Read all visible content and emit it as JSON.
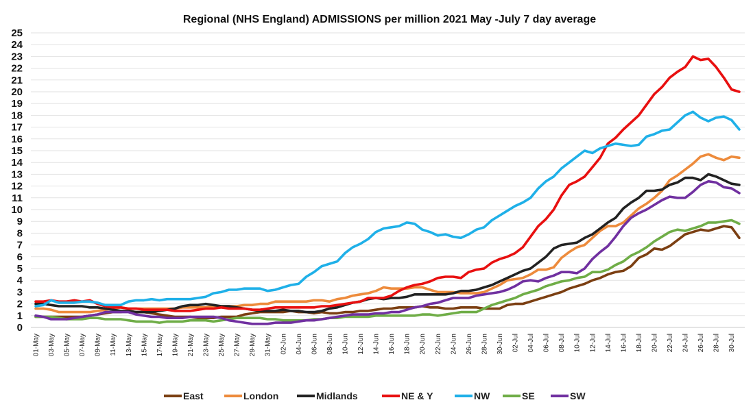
{
  "chart_data": {
    "type": "line",
    "title": "Regional (NHS England) ADMISSIONS per million 2021 May -July 7 day average",
    "xlabel": "",
    "ylabel": "",
    "ylim": [
      0,
      25
    ],
    "yticks": [
      0,
      1,
      2,
      3,
      4,
      5,
      6,
      7,
      8,
      9,
      10,
      11,
      12,
      13,
      14,
      15,
      16,
      17,
      18,
      19,
      20,
      21,
      22,
      23,
      24,
      25
    ],
    "grid": "horizontal",
    "legend": "bottom",
    "x": [
      "01-May",
      "02-May",
      "03-May",
      "04-May",
      "05-May",
      "06-May",
      "07-May",
      "08-May",
      "09-May",
      "10-May",
      "11-May",
      "12-May",
      "13-May",
      "14-May",
      "15-May",
      "16-May",
      "17-May",
      "18-May",
      "19-May",
      "20-May",
      "21-May",
      "22-May",
      "23-May",
      "24-May",
      "25-May",
      "26-May",
      "27-May",
      "28-May",
      "29-May",
      "30-May",
      "31-May",
      "01-Jun",
      "02-Jun",
      "03-Jun",
      "04-Jun",
      "05-Jun",
      "06-Jun",
      "07-Jun",
      "08-Jun",
      "09-Jun",
      "10-Jun",
      "11-Jun",
      "12-Jun",
      "13-Jun",
      "14-Jun",
      "15-Jun",
      "16-Jun",
      "17-Jun",
      "18-Jun",
      "19-Jun",
      "20-Jun",
      "21-Jun",
      "22-Jun",
      "23-Jun",
      "24-Jun",
      "25-Jun",
      "26-Jun",
      "27-Jun",
      "28-Jun",
      "29-Jun",
      "30-Jun",
      "01-Jul",
      "02-Jul",
      "03-Jul",
      "04-Jul",
      "05-Jul",
      "06-Jul",
      "07-Jul",
      "08-Jul",
      "09-Jul",
      "10-Jul",
      "11-Jul",
      "12-Jul",
      "13-Jul",
      "14-Jul",
      "15-Jul",
      "16-Jul",
      "17-Jul",
      "18-Jul",
      "19-Jul",
      "20-Jul",
      "21-Jul",
      "22-Jul",
      "23-Jul",
      "24-Jul",
      "25-Jul",
      "26-Jul",
      "27-Jul",
      "28-Jul",
      "29-Jul",
      "30-Jul",
      "31-Jul"
    ],
    "series": [
      {
        "name": "East",
        "color": "#7B3F12",
        "values": [
          0.9,
          0.9,
          0.9,
          0.9,
          0.9,
          0.9,
          0.9,
          1.0,
          1.1,
          1.2,
          1.3,
          1.3,
          1.4,
          1.3,
          1.3,
          1.2,
          1.1,
          1.0,
          0.9,
          0.9,
          0.9,
          0.8,
          0.8,
          0.8,
          0.9,
          0.9,
          0.9,
          1.1,
          1.2,
          1.3,
          1.3,
          1.3,
          1.3,
          1.4,
          1.3,
          1.3,
          1.2,
          1.3,
          1.2,
          1.2,
          1.3,
          1.3,
          1.4,
          1.4,
          1.5,
          1.6,
          1.6,
          1.7,
          1.7,
          1.7,
          1.8,
          1.7,
          1.7,
          1.6,
          1.6,
          1.7,
          1.7,
          1.7,
          1.6,
          1.6,
          1.6,
          1.9,
          2.0,
          2.0,
          2.2,
          2.4,
          2.6,
          2.8,
          3.0,
          3.3,
          3.5,
          3.7,
          4.0,
          4.2,
          4.5,
          4.7,
          4.8,
          5.2,
          5.9,
          6.2,
          6.7,
          6.6,
          6.9,
          7.4,
          7.9,
          8.1,
          8.3,
          8.2,
          8.4,
          8.6,
          8.5,
          7.6
        ]
      },
      {
        "name": "London",
        "color": "#ED8B3C",
        "values": [
          1.6,
          1.6,
          1.5,
          1.3,
          1.3,
          1.3,
          1.3,
          1.3,
          1.4,
          1.5,
          1.6,
          1.7,
          1.6,
          1.6,
          1.6,
          1.6,
          1.6,
          1.6,
          1.6,
          1.7,
          1.7,
          1.7,
          1.7,
          1.8,
          1.8,
          1.8,
          1.8,
          1.9,
          1.9,
          2.0,
          2.0,
          2.2,
          2.2,
          2.2,
          2.2,
          2.2,
          2.3,
          2.3,
          2.2,
          2.4,
          2.5,
          2.7,
          2.8,
          2.9,
          3.1,
          3.4,
          3.3,
          3.3,
          3.3,
          3.4,
          3.4,
          3.2,
          3.0,
          3.0,
          3.0,
          2.9,
          2.9,
          2.9,
          3.0,
          3.3,
          3.6,
          4.0,
          4.1,
          4.2,
          4.5,
          4.9,
          4.9,
          5.1,
          5.9,
          6.4,
          6.8,
          7.0,
          7.6,
          8.2,
          8.6,
          8.6,
          8.9,
          9.5,
          10.1,
          10.5,
          11.0,
          11.6,
          12.5,
          12.9,
          13.4,
          13.9,
          14.5,
          14.7,
          14.4,
          14.2,
          14.5,
          14.4
        ]
      },
      {
        "name": "Midlands",
        "color": "#222222",
        "values": [
          2.0,
          2.0,
          1.9,
          1.8,
          1.8,
          1.8,
          1.8,
          1.7,
          1.7,
          1.6,
          1.5,
          1.4,
          1.4,
          1.3,
          1.3,
          1.3,
          1.4,
          1.5,
          1.6,
          1.8,
          1.9,
          1.9,
          2.0,
          1.9,
          1.8,
          1.8,
          1.7,
          1.6,
          1.5,
          1.4,
          1.4,
          1.4,
          1.5,
          1.4,
          1.4,
          1.3,
          1.3,
          1.4,
          1.6,
          1.7,
          1.9,
          2.1,
          2.2,
          2.4,
          2.5,
          2.4,
          2.5,
          2.5,
          2.6,
          2.8,
          2.8,
          2.8,
          2.8,
          2.8,
          2.9,
          3.1,
          3.1,
          3.2,
          3.4,
          3.6,
          3.9,
          4.2,
          4.5,
          4.8,
          5.0,
          5.5,
          6.0,
          6.7,
          7.0,
          7.1,
          7.2,
          7.6,
          7.9,
          8.4,
          8.9,
          9.3,
          10.1,
          10.6,
          11.0,
          11.6,
          11.6,
          11.7,
          12.1,
          12.3,
          12.7,
          12.7,
          12.5,
          13.0,
          12.8,
          12.5,
          12.2,
          12.1
        ]
      },
      {
        "name": "NE & Y",
        "color": "#E81010",
        "values": [
          2.2,
          2.2,
          2.3,
          2.2,
          2.2,
          2.3,
          2.2,
          2.3,
          2.0,
          1.8,
          1.7,
          1.7,
          1.6,
          1.6,
          1.5,
          1.5,
          1.5,
          1.5,
          1.4,
          1.4,
          1.4,
          1.5,
          1.6,
          1.6,
          1.7,
          1.6,
          1.6,
          1.6,
          1.5,
          1.5,
          1.6,
          1.7,
          1.7,
          1.7,
          1.7,
          1.7,
          1.7,
          1.8,
          1.8,
          1.9,
          2.0,
          2.1,
          2.2,
          2.5,
          2.5,
          2.5,
          2.7,
          3.1,
          3.4,
          3.6,
          3.7,
          3.9,
          4.2,
          4.3,
          4.3,
          4.2,
          4.7,
          4.9,
          5.0,
          5.5,
          5.8,
          6.0,
          6.3,
          6.8,
          7.7,
          8.6,
          9.2,
          10.0,
          11.2,
          12.1,
          12.4,
          12.8,
          13.6,
          14.4,
          15.6,
          16.1,
          16.8,
          17.4,
          18.0,
          18.9,
          19.8,
          20.4,
          21.2,
          21.7,
          22.1,
          23.0,
          22.7,
          22.8,
          22.1,
          21.2,
          20.2,
          20.0
        ]
      },
      {
        "name": "NW",
        "color": "#1FB0E8",
        "values": [
          1.8,
          1.9,
          2.3,
          2.1,
          2.1,
          2.1,
          2.2,
          2.2,
          2.1,
          1.9,
          1.9,
          1.9,
          2.2,
          2.3,
          2.3,
          2.4,
          2.3,
          2.4,
          2.4,
          2.4,
          2.4,
          2.5,
          2.6,
          2.9,
          3.0,
          3.2,
          3.2,
          3.3,
          3.3,
          3.3,
          3.1,
          3.2,
          3.4,
          3.6,
          3.7,
          4.3,
          4.7,
          5.2,
          5.4,
          5.6,
          6.3,
          6.8,
          7.1,
          7.5,
          8.1,
          8.4,
          8.5,
          8.6,
          8.9,
          8.8,
          8.3,
          8.1,
          7.8,
          7.9,
          7.7,
          7.6,
          7.9,
          8.3,
          8.5,
          9.1,
          9.5,
          9.9,
          10.3,
          10.6,
          11.0,
          11.8,
          12.4,
          12.8,
          13.5,
          14.0,
          14.5,
          15.0,
          14.8,
          15.2,
          15.4,
          15.6,
          15.5,
          15.4,
          15.5,
          16.2,
          16.4,
          16.7,
          16.8,
          17.4,
          18.0,
          18.3,
          17.8,
          17.5,
          17.8,
          17.9,
          17.6,
          16.8
        ]
      },
      {
        "name": "SE",
        "color": "#6FAD47",
        "values": [
          0.9,
          0.9,
          0.9,
          0.8,
          0.7,
          0.7,
          0.7,
          0.8,
          0.8,
          0.7,
          0.7,
          0.7,
          0.6,
          0.5,
          0.5,
          0.5,
          0.4,
          0.5,
          0.5,
          0.5,
          0.6,
          0.6,
          0.6,
          0.5,
          0.6,
          0.7,
          0.8,
          0.8,
          0.8,
          0.8,
          0.7,
          0.7,
          0.6,
          0.6,
          0.6,
          0.6,
          0.7,
          0.7,
          0.8,
          0.8,
          0.9,
          0.9,
          0.9,
          0.9,
          1.0,
          1.0,
          1.0,
          1.0,
          1.0,
          1.0,
          1.1,
          1.1,
          1.0,
          1.1,
          1.2,
          1.3,
          1.3,
          1.3,
          1.6,
          1.9,
          2.1,
          2.3,
          2.5,
          2.8,
          3.0,
          3.2,
          3.5,
          3.7,
          3.9,
          4.0,
          4.2,
          4.3,
          4.7,
          4.7,
          4.9,
          5.3,
          5.6,
          6.1,
          6.4,
          6.8,
          7.3,
          7.7,
          8.1,
          8.3,
          8.2,
          8.4,
          8.6,
          8.9,
          8.9,
          9.0,
          9.1,
          8.8
        ]
      },
      {
        "name": "SW",
        "color": "#7030A0",
        "values": [
          1.0,
          0.9,
          0.7,
          0.7,
          0.7,
          0.8,
          0.9,
          1.0,
          1.1,
          1.3,
          1.3,
          1.3,
          1.3,
          1.1,
          1.0,
          0.9,
          0.9,
          0.8,
          0.8,
          0.8,
          0.9,
          0.9,
          0.9,
          0.9,
          0.8,
          0.6,
          0.5,
          0.4,
          0.3,
          0.3,
          0.3,
          0.4,
          0.4,
          0.4,
          0.5,
          0.6,
          0.6,
          0.7,
          0.8,
          0.9,
          1.0,
          1.1,
          1.1,
          1.1,
          1.2,
          1.2,
          1.3,
          1.3,
          1.5,
          1.7,
          1.8,
          2.0,
          2.1,
          2.3,
          2.5,
          2.5,
          2.5,
          2.7,
          2.8,
          2.9,
          3.0,
          3.2,
          3.5,
          3.9,
          4.0,
          3.9,
          4.2,
          4.4,
          4.7,
          4.7,
          4.6,
          5.0,
          5.8,
          6.4,
          6.9,
          7.7,
          8.6,
          9.3,
          9.7,
          10.0,
          10.4,
          10.8,
          11.1,
          11.0,
          11.0,
          11.5,
          12.1,
          12.4,
          12.3,
          11.9,
          11.8,
          11.4
        ]
      }
    ]
  }
}
